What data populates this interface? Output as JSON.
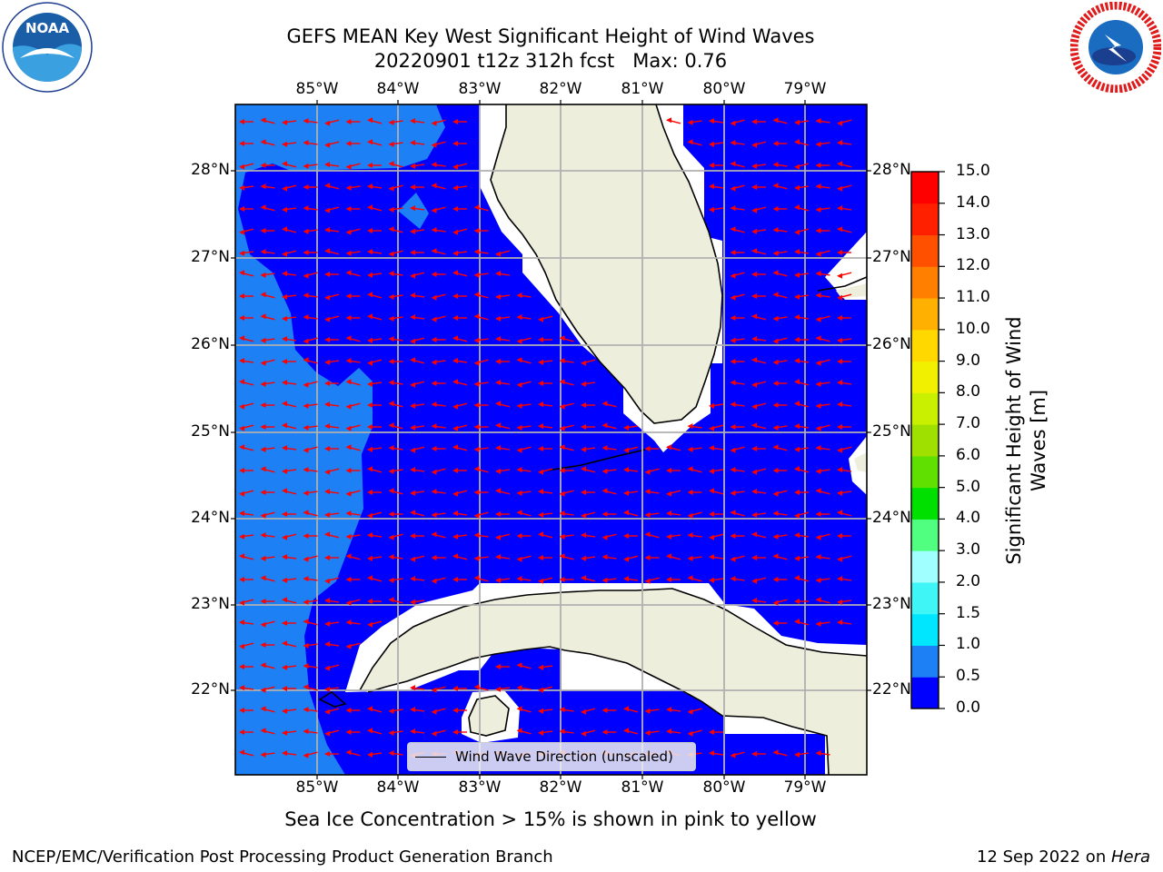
{
  "title": {
    "line1": "GEFS MEAN Key West Significant Height of Wind Waves",
    "line2": "20220901 t12z 312h fcst   Max: 0.76"
  },
  "logos": {
    "left": {
      "name": "noaa-logo",
      "text": "NOAA",
      "ring_text": "NATIONAL OCEANIC AND ATMOSPHERIC ADMINISTRATION · U.S. DEPARTMENT OF COMMERCE"
    },
    "right": {
      "name": "nws-logo",
      "ring_text": "NATIONAL WEATHER SERVICE"
    }
  },
  "map": {
    "lon_labels": [
      "85°W",
      "84°W",
      "83°W",
      "82°W",
      "81°W",
      "80°W",
      "79°W"
    ],
    "lat_labels": [
      "28°N",
      "27°N",
      "26°N",
      "25°N",
      "24°N",
      "23°N",
      "22°N"
    ],
    "legend_label": "Wind Wave Direction (unscaled)",
    "colors": {
      "ocean_low": "#0000ff",
      "ocean_mid": "#1e80f5",
      "land": "#eeeedd",
      "arrow": "#ff0000",
      "grid": "#b0b0b0"
    }
  },
  "colorbar": {
    "label_line1": "Significant Height of Wind",
    "label_line2": "Waves [m]",
    "ticks": [
      "0.0",
      "0.5",
      "1.0",
      "1.5",
      "2.0",
      "3.0",
      "4.0",
      "5.0",
      "6.0",
      "7.0",
      "8.0",
      "9.0",
      "10.0",
      "11.0",
      "12.0",
      "13.0",
      "14.0",
      "15.0"
    ],
    "colors": [
      "#0000ff",
      "#1e80f5",
      "#00e6ff",
      "#40f5f5",
      "#a0ffff",
      "#50ff80",
      "#00e000",
      "#60e000",
      "#a0e000",
      "#c8f000",
      "#f0f000",
      "#ffd800",
      "#ffb000",
      "#ff8000",
      "#ff5000",
      "#ff2000",
      "#ff0000"
    ]
  },
  "chart_data": {
    "type": "heatmap",
    "title": "GEFS MEAN Key West Significant Height of Wind Waves",
    "subtitle": "20220901 t12z 312h fcst   Max: 0.76",
    "variable": "Significant Height of Wind Waves [m]",
    "max_value": 0.76,
    "extent": {
      "lon": [
        -86.0,
        -78.3
      ],
      "lat": [
        21.0,
        28.75
      ]
    },
    "color_levels": [
      0.0,
      0.5,
      1.0,
      1.5,
      2.0,
      3.0,
      4.0,
      5.0,
      6.0,
      7.0,
      8.0,
      9.0,
      10.0,
      11.0,
      12.0,
      13.0,
      14.0,
      15.0
    ],
    "wave_direction": "westward (east to west), unscaled arrows"
  },
  "annotations": {
    "ice_note": "Sea Ice Concentration > 15% is shown in pink to yellow",
    "footer_left": "NCEP/EMC/Verification Post Processing Product Generation Branch",
    "footer_date": "12 Sep 2022 on ",
    "footer_machine": "Hera"
  }
}
